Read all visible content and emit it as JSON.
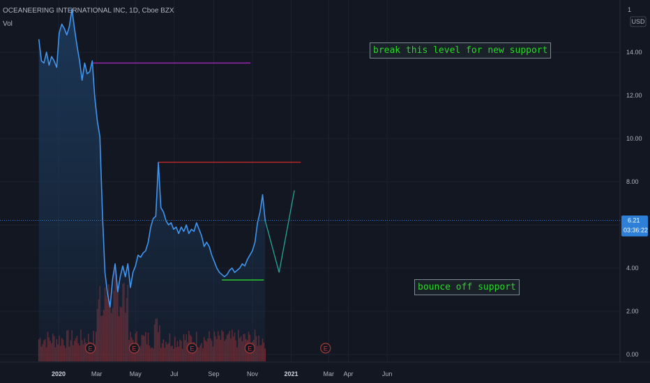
{
  "header": {
    "symbol_line": "OCEANEERING INTERNATIONAL INC, 1D, Cboe BZX",
    "volume_label": "Vol",
    "currency": "USD",
    "scale_label": "1"
  },
  "annotations": {
    "resistance_text": "break this level for new support",
    "support_text": "bounce off support"
  },
  "price_tag": {
    "price": "6.21",
    "countdown": "03:36:22"
  },
  "colors": {
    "background": "#131722",
    "price_line": "#4196f0",
    "area_fill": "#1c3a5c",
    "resistance_line_purple": "#9c27b0",
    "resistance_line_red": "#c62828",
    "support_line": "#2bd82b",
    "projection_line": "#26a69a",
    "volume_bar": "#b33636",
    "earnings_marker": "#a83a3a",
    "price_tag": "#2d7fd8"
  },
  "chart_data": {
    "type": "line",
    "title": "OCEANEERING INTERNATIONAL INC, 1D, Cboe BZX",
    "ylabel": "USD",
    "ylim": [
      0,
      16
    ],
    "y_ticks": [
      "0.00",
      "2.00",
      "4.00",
      "6.00",
      "8.00",
      "10.00",
      "12.00",
      "14.00"
    ],
    "x_ticks": [
      {
        "label": "2020",
        "x": "2020-01-01"
      },
      {
        "label": "Mar",
        "x": "2020-03-01"
      },
      {
        "label": "May",
        "x": "2020-05-01"
      },
      {
        "label": "Jul",
        "x": "2020-07-01"
      },
      {
        "label": "Sep",
        "x": "2020-09-01"
      },
      {
        "label": "Nov",
        "x": "2020-11-01"
      },
      {
        "label": "2021",
        "x": "2021-01-01"
      },
      {
        "label": "Mar",
        "x": "2021-03-01"
      },
      {
        "label": "Apr",
        "x": "2021-04-01"
      },
      {
        "label": "Jun",
        "x": "2021-06-01"
      }
    ],
    "series": [
      {
        "name": "",
        "points": [
          [
            "2019-12-01",
            14.6
          ],
          [
            "2019-12-05",
            13.6
          ],
          [
            "2019-12-09",
            13.5
          ],
          [
            "2019-12-13",
            14.0
          ],
          [
            "2019-12-17",
            13.4
          ],
          [
            "2019-12-21",
            13.8
          ],
          [
            "2019-12-25",
            13.6
          ],
          [
            "2019-12-29",
            13.3
          ],
          [
            "2020-01-02",
            14.9
          ],
          [
            "2020-01-06",
            15.3
          ],
          [
            "2020-01-10",
            15.1
          ],
          [
            "2020-01-14",
            14.8
          ],
          [
            "2020-01-18",
            15.2
          ],
          [
            "2020-01-22",
            16.0
          ],
          [
            "2020-01-26",
            15.1
          ],
          [
            "2020-01-30",
            14.3
          ],
          [
            "2020-02-03",
            13.6
          ],
          [
            "2020-02-07",
            12.7
          ],
          [
            "2020-02-11",
            13.5
          ],
          [
            "2020-02-15",
            13.0
          ],
          [
            "2020-02-19",
            13.1
          ],
          [
            "2020-02-23",
            13.6
          ],
          [
            "2020-02-27",
            11.9
          ],
          [
            "2020-03-02",
            10.8
          ],
          [
            "2020-03-06",
            10.1
          ],
          [
            "2020-03-10",
            6.5
          ],
          [
            "2020-03-14",
            3.8
          ],
          [
            "2020-03-18",
            2.8
          ],
          [
            "2020-03-22",
            2.2
          ],
          [
            "2020-03-26",
            3.5
          ],
          [
            "2020-03-30",
            4.2
          ],
          [
            "2020-04-03",
            2.9
          ],
          [
            "2020-04-07",
            3.6
          ],
          [
            "2020-04-11",
            4.1
          ],
          [
            "2020-04-15",
            3.6
          ],
          [
            "2020-04-19",
            4.2
          ],
          [
            "2020-04-23",
            3.1
          ],
          [
            "2020-04-27",
            3.8
          ],
          [
            "2020-05-01",
            4.1
          ],
          [
            "2020-05-05",
            4.6
          ],
          [
            "2020-05-09",
            4.5
          ],
          [
            "2020-05-13",
            4.7
          ],
          [
            "2020-05-17",
            4.8
          ],
          [
            "2020-05-21",
            5.2
          ],
          [
            "2020-05-25",
            5.9
          ],
          [
            "2020-05-29",
            6.3
          ],
          [
            "2020-06-02",
            6.4
          ],
          [
            "2020-06-06",
            8.9
          ],
          [
            "2020-06-10",
            6.8
          ],
          [
            "2020-06-14",
            6.6
          ],
          [
            "2020-06-18",
            6.2
          ],
          [
            "2020-06-22",
            6.0
          ],
          [
            "2020-06-26",
            6.1
          ],
          [
            "2020-06-30",
            5.8
          ],
          [
            "2020-07-04",
            5.9
          ],
          [
            "2020-07-08",
            5.6
          ],
          [
            "2020-07-12",
            5.9
          ],
          [
            "2020-07-16",
            5.7
          ],
          [
            "2020-07-20",
            6.0
          ],
          [
            "2020-07-24",
            5.6
          ],
          [
            "2020-07-28",
            5.8
          ],
          [
            "2020-08-01",
            5.7
          ],
          [
            "2020-08-05",
            6.1
          ],
          [
            "2020-08-09",
            5.8
          ],
          [
            "2020-08-13",
            5.5
          ],
          [
            "2020-08-17",
            5.0
          ],
          [
            "2020-08-21",
            5.2
          ],
          [
            "2020-08-25",
            5.0
          ],
          [
            "2020-08-29",
            4.6
          ],
          [
            "2020-09-02",
            4.3
          ],
          [
            "2020-09-06",
            4.0
          ],
          [
            "2020-09-10",
            3.8
          ],
          [
            "2020-09-14",
            3.7
          ],
          [
            "2020-09-18",
            3.6
          ],
          [
            "2020-09-22",
            3.7
          ],
          [
            "2020-09-26",
            3.9
          ],
          [
            "2020-09-30",
            4.0
          ],
          [
            "2020-10-04",
            3.8
          ],
          [
            "2020-10-08",
            3.9
          ],
          [
            "2020-10-12",
            4.0
          ],
          [
            "2020-10-16",
            4.2
          ],
          [
            "2020-10-20",
            4.1
          ],
          [
            "2020-10-24",
            4.4
          ],
          [
            "2020-10-28",
            4.6
          ],
          [
            "2020-11-01",
            4.8
          ],
          [
            "2020-11-05",
            5.2
          ],
          [
            "2020-11-09",
            6.1
          ],
          [
            "2020-11-13",
            6.6
          ],
          [
            "2020-11-17",
            7.4
          ],
          [
            "2020-11-21",
            6.2
          ]
        ]
      }
    ],
    "volume": {
      "scale_note": "relative heights, max 1",
      "earnings_dates": [
        "2020-02-20",
        "2020-04-29",
        "2020-07-29",
        "2020-10-28",
        "2021-02-24"
      ]
    },
    "horizontal_levels": [
      {
        "name": "",
        "y": 13.5,
        "x_start": "2020-02-24",
        "x_end": "2020-10-29",
        "color": "#9c27b0"
      },
      {
        "name": "",
        "y": 8.9,
        "x_start": "2020-06-07",
        "x_end": "2021-01-16",
        "color": "#c62828"
      },
      {
        "name": "",
        "y": 3.45,
        "x_start": "2020-09-14",
        "x_end": "2020-11-19",
        "color": "#2bd82b"
      }
    ],
    "projection": [
      [
        "2020-11-21",
        6.2
      ],
      [
        "2020-12-13",
        3.8
      ],
      [
        "2021-01-06",
        7.6
      ]
    ],
    "last_price": 6.21
  }
}
